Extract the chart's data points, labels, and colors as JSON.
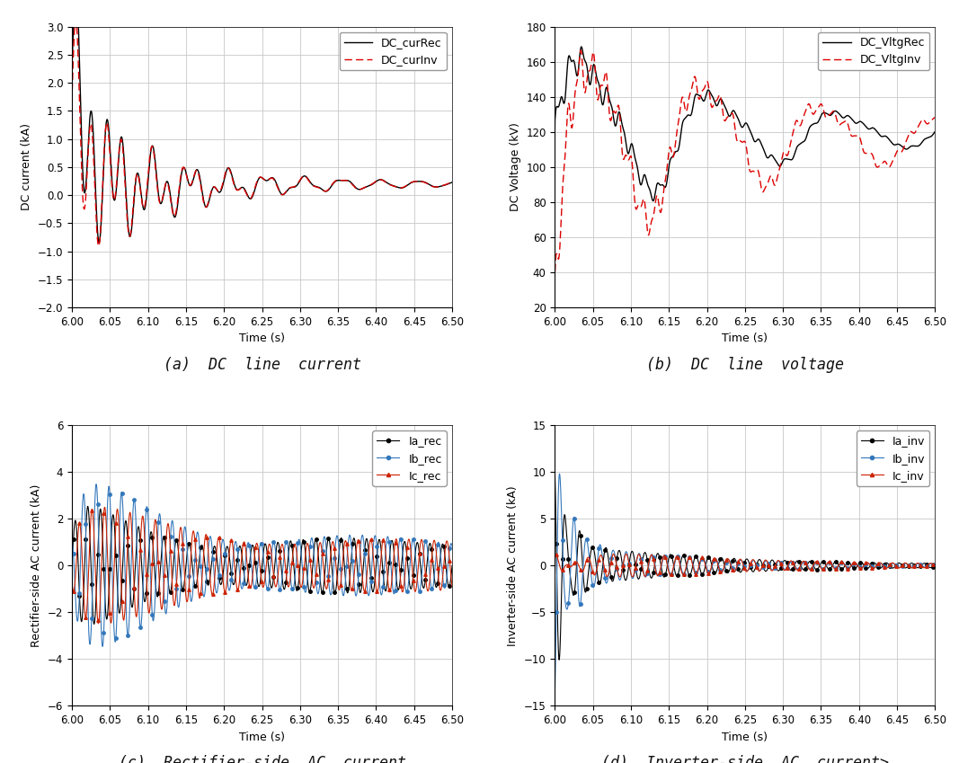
{
  "subplot_titles": [
    "(a)  DC  line  current",
    "(b)  DC  line  voltage",
    "(c)  Rectifier-side  AC  current",
    "(d)  Inverter-side  AC  current>"
  ],
  "ax_a": {
    "ylabel": "DC current (kA)",
    "xlabel": "Time (s)",
    "ylim": [
      -2.0,
      3.0
    ],
    "yticks": [
      -2.0,
      -1.5,
      -1.0,
      -0.5,
      0.0,
      0.5,
      1.0,
      1.5,
      2.0,
      2.5,
      3.0
    ]
  },
  "ax_b": {
    "ylabel": "DC Voltage (kV)",
    "xlabel": "Time (s)",
    "ylim": [
      20,
      180
    ],
    "yticks": [
      20,
      40,
      60,
      80,
      100,
      120,
      140,
      160,
      180
    ]
  },
  "ax_c": {
    "ylabel": "Rectifier-side AC current (kA)",
    "xlabel": "Time (s)",
    "ylim": [
      -6,
      6
    ],
    "yticks": [
      -6,
      -4,
      -2,
      0,
      2,
      4,
      6
    ]
  },
  "ax_d": {
    "ylabel": "Inverter-side AC current (kA)",
    "xlabel": "Time (s)",
    "ylim": [
      -15,
      15
    ],
    "yticks": [
      -15,
      -10,
      -5,
      0,
      5,
      10,
      15
    ]
  },
  "xticks": [
    6.0,
    6.05,
    6.1,
    6.15,
    6.2,
    6.25,
    6.3,
    6.35,
    6.4,
    6.45,
    6.5
  ],
  "grid_color": "#c8c8c8",
  "background_color": "#ffffff",
  "label_fontsize": 9,
  "tick_fontsize": 8.5,
  "legend_fontsize": 9
}
